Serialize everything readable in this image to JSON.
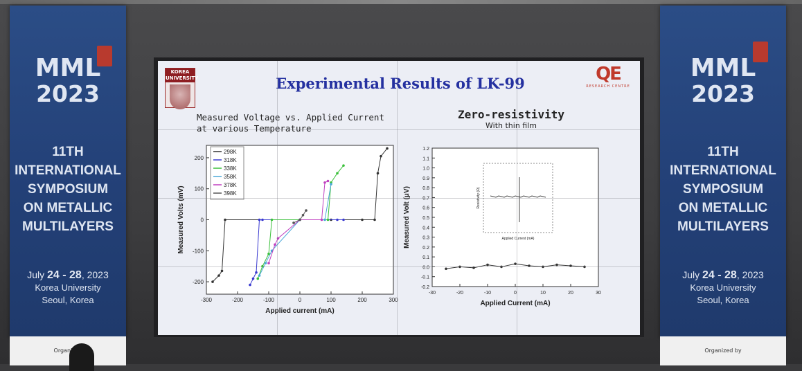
{
  "banner_left": {
    "title": "MML",
    "year": "2023",
    "symposium_lines": [
      "11TH",
      "INTERNATIONAL",
      "SYMPOSIUM",
      "ON METALLIC",
      "MULTILAYERS"
    ],
    "date_prefix": "July ",
    "date_days": "24 - 28",
    "date_suffix": ", 2023",
    "venue": "Korea University",
    "city": "Seoul, Korea",
    "footer": "Organized"
  },
  "banner_right": {
    "title": "MML",
    "year": "2023",
    "symposium_lines": [
      "11TH",
      "INTERNATIONAL",
      "SYMPOSIUM",
      "ON METALLIC",
      "MULTILAYERS"
    ],
    "date_prefix": "July ",
    "date_days": "24 - 28",
    "date_suffix": ", 2023",
    "venue": "Korea University",
    "city": "Seoul, Korea",
    "footer": "Organized by"
  },
  "slide": {
    "title": "Experimental Results of LK-99",
    "logo_left_text": "KOREA UNIVERSITY",
    "logo_right_text": "QE",
    "logo_right_sub": "RESEARCH CENTRE",
    "left_subtitle_1": "Measured Voltage vs. Applied Current",
    "left_subtitle_2": "at various Temperature",
    "right_subtitle_1": "Zero-resistivity",
    "right_subtitle_2": "With thin film"
  },
  "chart_data": [
    {
      "type": "scatter",
      "xlabel": "Applied current (mA)",
      "ylabel": "Measured Volts (mV)",
      "xlim": [
        -300,
        300
      ],
      "ylim": [
        -240,
        240
      ],
      "xticks": [
        -300,
        -200,
        -100,
        0,
        100,
        200,
        300
      ],
      "yticks": [
        -200,
        -100,
        0,
        100,
        200
      ],
      "legend_position": "top-left",
      "series": [
        {
          "name": "298K",
          "color": "#333333",
          "x": [
            -280,
            -260,
            -250,
            -240,
            0,
            100,
            200,
            240,
            250,
            260,
            280
          ],
          "y": [
            -200,
            -180,
            -165,
            0,
            0,
            0,
            0,
            0,
            150,
            205,
            230
          ]
        },
        {
          "name": "318K",
          "color": "#3a3ad0",
          "x": [
            -160,
            -150,
            -140,
            -130,
            -120,
            0,
            120,
            140
          ],
          "y": [
            -210,
            -190,
            -170,
            0,
            0,
            0,
            0,
            0
          ]
        },
        {
          "name": "338K",
          "color": "#3ac03a",
          "x": [
            -135,
            -120,
            -100,
            -90,
            0,
            90,
            100,
            120,
            140
          ],
          "y": [
            -190,
            -150,
            -110,
            0,
            0,
            0,
            120,
            150,
            175
          ]
        },
        {
          "name": "358K",
          "color": "#4aa8d8",
          "x": [
            -130,
            -110,
            -90,
            0,
            80,
            100
          ],
          "y": [
            -180,
            -140,
            -100,
            0,
            0,
            115
          ]
        },
        {
          "name": "378K",
          "color": "#c040c0",
          "x": [
            -100,
            -80,
            -70,
            0,
            70,
            80,
            90
          ],
          "y": [
            -140,
            -80,
            -60,
            0,
            0,
            120,
            125
          ]
        },
        {
          "name": "398K",
          "color": "#555555",
          "x": [
            -20,
            0,
            10,
            20
          ],
          "y": [
            -10,
            0,
            15,
            30
          ]
        }
      ]
    },
    {
      "type": "scatter",
      "xlabel": "Applied Current (mA)",
      "ylabel": "Measured Volt (μV)",
      "xlim": [
        -30,
        30
      ],
      "ylim": [
        -0.2,
        1.2
      ],
      "xticks": [
        -30,
        -20,
        -10,
        0,
        10,
        20,
        30
      ],
      "yticks": [
        -0.2,
        -0.1,
        0.0,
        0.1,
        0.2,
        0.3,
        0.4,
        0.5,
        0.6,
        0.7,
        0.8,
        0.9,
        1.0,
        1.1,
        1.2
      ],
      "series": [
        {
          "x": [
            -25,
            -20,
            -15,
            -10,
            -5,
            0,
            5,
            10,
            15,
            20,
            25
          ],
          "y": [
            -0.02,
            0.0,
            -0.01,
            0.02,
            0.0,
            0.03,
            0.01,
            0.0,
            0.02,
            0.01,
            0.0
          ]
        }
      ],
      "inset": {
        "xlabel": "Applied Current (mA)",
        "ylabel": "Resistivity (Ω)"
      }
    }
  ]
}
